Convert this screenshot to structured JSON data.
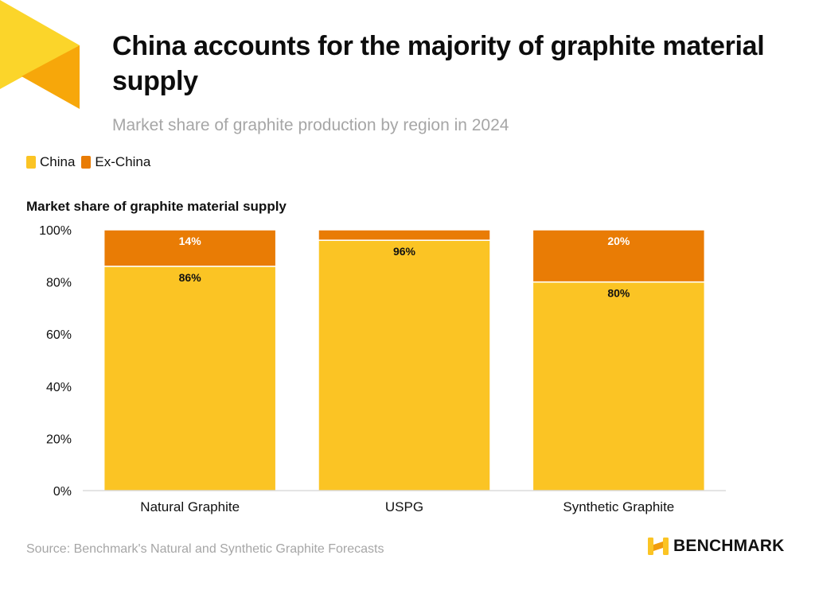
{
  "header": {
    "title": "China accounts for the majority of graphite material supply",
    "subtitle": "Market share of graphite production by region in 2024"
  },
  "legend": [
    {
      "label": "China",
      "color": "#fbc424"
    },
    {
      "label": "Ex-China",
      "color": "#e97c05"
    }
  ],
  "chart_label": "Market share of graphite material supply",
  "chart_data": {
    "type": "bar",
    "stacked": true,
    "title": "Market share of graphite material supply",
    "xlabel": "",
    "ylabel": "",
    "ylim": [
      0,
      100
    ],
    "yticks": [
      0,
      20,
      40,
      60,
      80,
      100
    ],
    "ytick_labels": [
      "0%",
      "20%",
      "40%",
      "60%",
      "80%",
      "100%"
    ],
    "categories": [
      "Natural Graphite",
      "USPG",
      "Synthetic Graphite"
    ],
    "series": [
      {
        "name": "China",
        "color": "#fbc424",
        "values": [
          86,
          96,
          80
        ],
        "labels": [
          "86%",
          "96%",
          "80%"
        ]
      },
      {
        "name": "Ex-China",
        "color": "#e97c05",
        "values": [
          14,
          4,
          20
        ],
        "labels": [
          "14%",
          "",
          "20%"
        ]
      }
    ],
    "legend_position": "top-left",
    "grid": false
  },
  "footer": {
    "source": "Source: Benchmark's Natural and Synthetic Graphite Forecasts",
    "brand": "BENCHMARK"
  },
  "colors": {
    "accent_light": "#fbd52a",
    "accent_dark": "#f7a70a",
    "text_muted": "#a6a6a6",
    "axis": "#c8c8c8"
  }
}
